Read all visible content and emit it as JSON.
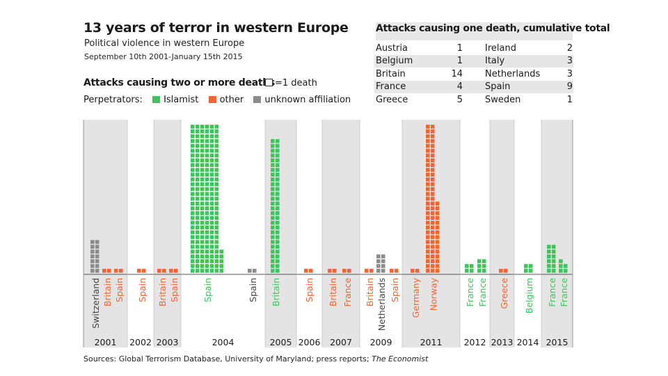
{
  "title": "13 years of terror in western Europe",
  "subtitle": "Political violence in western Europe",
  "date_range": "September 10th 2001-January 15th 2015",
  "section_heading": "Attacks causing two or more deaths",
  "unit_note": "=1 death",
  "legend": {
    "label": "Perpetrators:",
    "items": [
      {
        "name": "Islamist",
        "color": "#3ec45a"
      },
      {
        "name": "other",
        "color": "#f26530"
      },
      {
        "name": "unknown affiliation",
        "color": "#8c8c8c"
      }
    ]
  },
  "single_death_table": {
    "title": "Attacks causing one death, cumulative total",
    "left": [
      {
        "country": "Austria",
        "count": "1"
      },
      {
        "country": "Belgium",
        "count": "1"
      },
      {
        "country": "Britain",
        "count": "14"
      },
      {
        "country": "France",
        "count": "4"
      },
      {
        "country": "Greece",
        "count": "5"
      }
    ],
    "right": [
      {
        "country": "Ireland",
        "count": "2"
      },
      {
        "country": "Italy",
        "count": "3"
      },
      {
        "country": "Netherlands",
        "count": "3"
      },
      {
        "country": "Spain",
        "count": "9"
      },
      {
        "country": "Sweden",
        "count": "1"
      }
    ]
  },
  "source": {
    "text": "Sources: Global Terrorism Database, University of Maryland; press reports; ",
    "publication": "The Economist"
  },
  "chart_data": {
    "type": "bar",
    "title": "Attacks causing two or more deaths",
    "unit": "deaths (each square = 1 death)",
    "years": [
      {
        "year": "2001",
        "attacks": [
          {
            "country": "Switzerland",
            "perpetrator": "unknown",
            "deaths": 14
          },
          {
            "country": "Britain",
            "perpetrator": "other",
            "deaths": 2
          },
          {
            "country": "Spain",
            "perpetrator": "other",
            "deaths": 2
          }
        ]
      },
      {
        "year": "2002",
        "attacks": [
          {
            "country": "Spain",
            "perpetrator": "other",
            "deaths": 2
          }
        ]
      },
      {
        "year": "2003",
        "attacks": [
          {
            "country": "Britain",
            "perpetrator": "other",
            "deaths": 2
          },
          {
            "country": "Spain",
            "perpetrator": "other",
            "deaths": 2
          }
        ]
      },
      {
        "year": "2004",
        "attacks": [
          {
            "country": "Spain",
            "perpetrator": "islamist",
            "deaths": 191
          },
          {
            "country": "Spain",
            "perpetrator": "unknown",
            "deaths": 2
          }
        ]
      },
      {
        "year": "2005",
        "attacks": [
          {
            "country": "Britain",
            "perpetrator": "islamist",
            "deaths": 56
          }
        ]
      },
      {
        "year": "2006",
        "attacks": [
          {
            "country": "Spain",
            "perpetrator": "other",
            "deaths": 2
          }
        ]
      },
      {
        "year": "2007",
        "attacks": [
          {
            "country": "Britain",
            "perpetrator": "other",
            "deaths": 2
          },
          {
            "country": "France",
            "perpetrator": "other",
            "deaths": 2
          }
        ]
      },
      {
        "year": "2009",
        "attacks": [
          {
            "country": "Britain",
            "perpetrator": "other",
            "deaths": 2
          },
          {
            "country": "Netherlands",
            "perpetrator": "unknown",
            "deaths": 8
          },
          {
            "country": "Spain",
            "perpetrator": "other",
            "deaths": 2
          }
        ]
      },
      {
        "year": "2011",
        "attacks": [
          {
            "country": "Germany",
            "perpetrator": "other",
            "deaths": 2
          },
          {
            "country": "Norway",
            "perpetrator": "other",
            "deaths": 77
          }
        ]
      },
      {
        "year": "2012",
        "attacks": [
          {
            "country": "France",
            "perpetrator": "islamist",
            "deaths": 4
          },
          {
            "country": "France",
            "perpetrator": "islamist",
            "deaths": 6
          }
        ]
      },
      {
        "year": "2013",
        "attacks": [
          {
            "country": "Greece",
            "perpetrator": "other",
            "deaths": 2
          }
        ]
      },
      {
        "year": "2014",
        "attacks": [
          {
            "country": "Belgium",
            "perpetrator": "islamist",
            "deaths": 4
          }
        ]
      },
      {
        "year": "2015",
        "attacks": [
          {
            "country": "France",
            "perpetrator": "islamist",
            "deaths": 12
          },
          {
            "country": "France",
            "perpetrator": "islamist",
            "deaths": 5
          }
        ]
      }
    ]
  }
}
